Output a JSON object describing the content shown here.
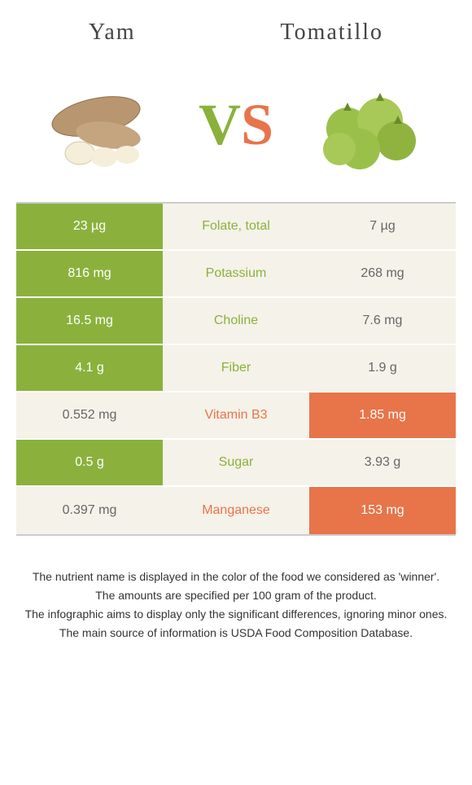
{
  "header": {
    "left_title": "Yam",
    "right_title": "Tomatillo"
  },
  "vs": {
    "v": "V",
    "s": "S"
  },
  "colors": {
    "green": "#8bb13c",
    "orange": "#e8744a",
    "pale": "#f5f2e9"
  },
  "rows": [
    {
      "left": "23 µg",
      "label": "Folate, total",
      "right": "7 µg",
      "winner": "left"
    },
    {
      "left": "816 mg",
      "label": "Potassium",
      "right": "268 mg",
      "winner": "left"
    },
    {
      "left": "16.5 mg",
      "label": "Choline",
      "right": "7.6 mg",
      "winner": "left"
    },
    {
      "left": "4.1 g",
      "label": "Fiber",
      "right": "1.9 g",
      "winner": "left"
    },
    {
      "left": "0.552 mg",
      "label": "Vitamin B3",
      "right": "1.85 mg",
      "winner": "right"
    },
    {
      "left": "0.5 g",
      "label": "Sugar",
      "right": "3.93 g",
      "winner": "left"
    },
    {
      "left": "0.397 mg",
      "label": "Manganese",
      "right": "153 mg",
      "winner": "right"
    }
  ],
  "footer": {
    "line1": "The nutrient name is displayed in the color of the food we considered as 'winner'.",
    "line2": "The amounts are specified per 100 gram of the product.",
    "line3": "The infographic aims to display only the significant differences, ignoring minor ones.",
    "line4": "The main source of information is USDA Food Composition Database."
  }
}
